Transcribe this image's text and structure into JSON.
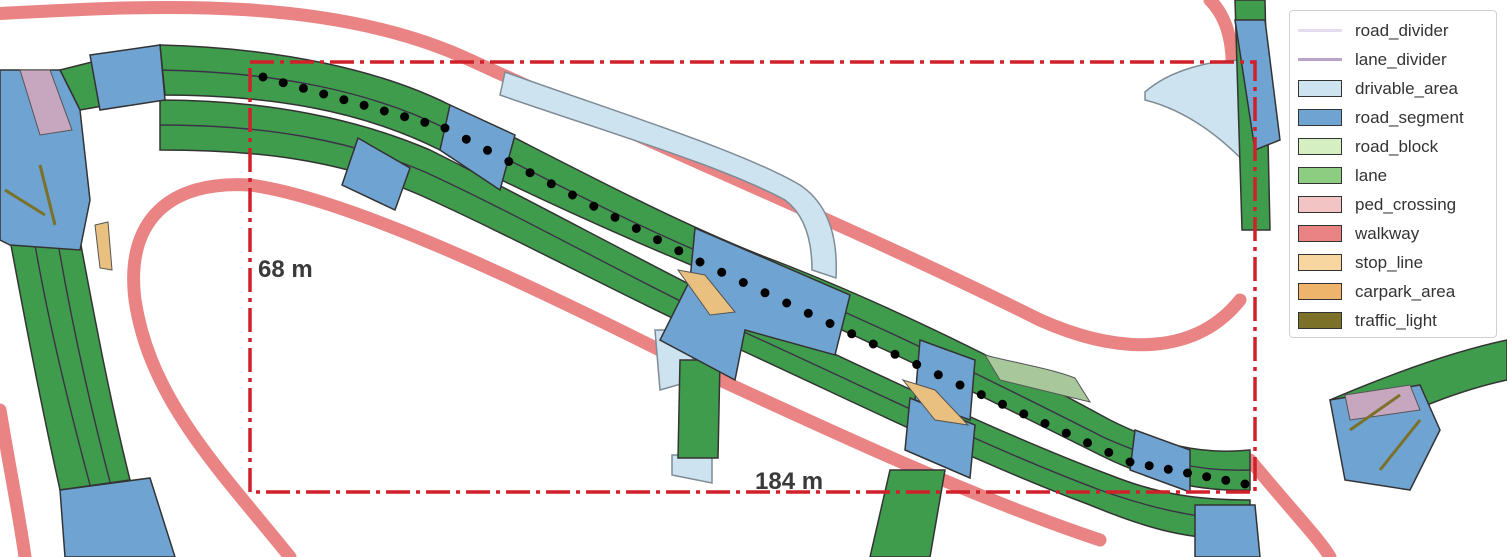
{
  "scene": {
    "region_height_label": "68 m",
    "region_width_label": "184 m"
  },
  "colors": {
    "region_box": "#d0202a",
    "waypoint": "#000000"
  },
  "legend": {
    "items": [
      {
        "label": "road_divider",
        "style": "line",
        "color": "#e6dcee"
      },
      {
        "label": "lane_divider",
        "style": "line",
        "color": "#b9a3c9"
      },
      {
        "label": "drivable_area",
        "style": "patch",
        "color": "#cde3ef"
      },
      {
        "label": "road_segment",
        "style": "patch",
        "color": "#6fa3d2"
      },
      {
        "label": "road_block",
        "style": "patch",
        "color": "#d5eec2"
      },
      {
        "label": "lane",
        "style": "patch",
        "color": "#8ccd82"
      },
      {
        "label": "ped_crossing",
        "style": "patch",
        "color": "#f2c4c4"
      },
      {
        "label": "walkway",
        "style": "patch",
        "color": "#e98384"
      },
      {
        "label": "stop_line",
        "style": "patch",
        "color": "#f7d6a0"
      },
      {
        "label": "carpark_area",
        "style": "patch",
        "color": "#efb46b"
      },
      {
        "label": "traffic_light",
        "style": "patch",
        "color": "#7b7128"
      }
    ]
  }
}
